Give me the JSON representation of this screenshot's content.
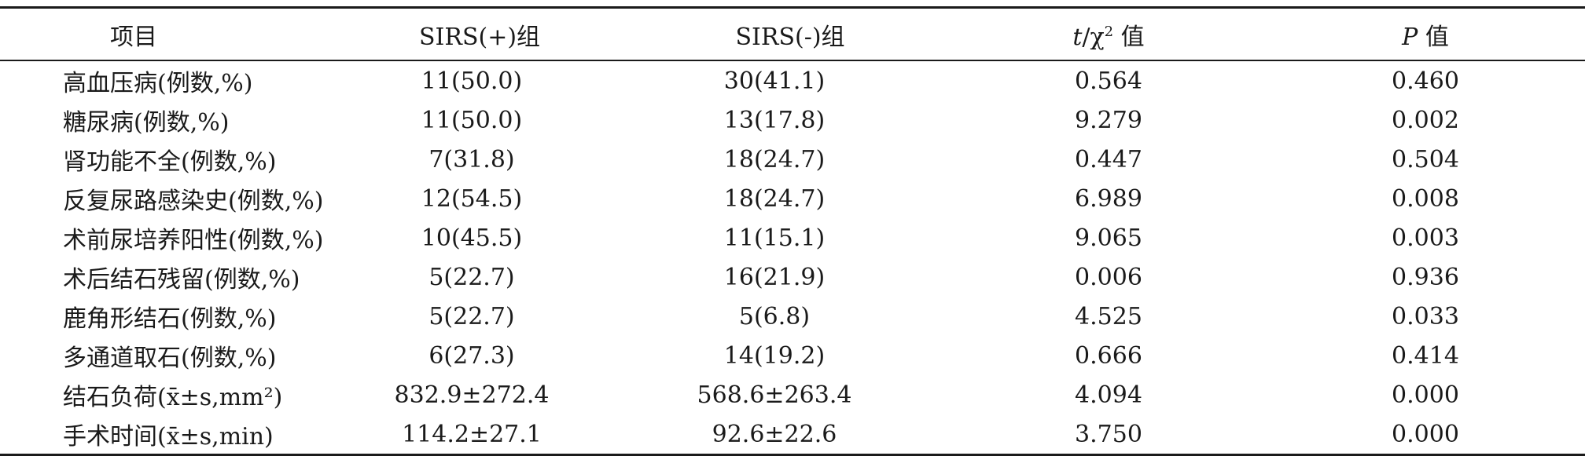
{
  "table": {
    "headers": {
      "item": "项目",
      "sirs_pos": "SIRS(+)组",
      "sirs_neg": "SIRS(-)组",
      "stat_t": "t",
      "stat_sep": "/χ",
      "stat_sup": "2",
      "stat_suffix": " 值",
      "p_letter": "P",
      "p_suffix": " 值"
    },
    "rows": [
      {
        "item": "高血压病(例数,%)",
        "pos": "11(50.0)",
        "neg": "30(41.1)",
        "stat": "0.564",
        "p": "0.460"
      },
      {
        "item": "糖尿病(例数,%)",
        "pos": "11(50.0)",
        "neg": "13(17.8)",
        "stat": "9.279",
        "p": "0.002"
      },
      {
        "item": "肾功能不全(例数,%)",
        "pos": "7(31.8)",
        "neg": "18(24.7)",
        "stat": "0.447",
        "p": "0.504"
      },
      {
        "item": "反复尿路感染史(例数,%)",
        "pos": "12(54.5)",
        "neg": "18(24.7)",
        "stat": "6.989",
        "p": "0.008"
      },
      {
        "item": "术前尿培养阳性(例数,%)",
        "pos": "10(45.5)",
        "neg": "11(15.1)",
        "stat": "9.065",
        "p": "0.003"
      },
      {
        "item": "术后结石残留(例数,%)",
        "pos": "5(22.7)",
        "neg": "16(21.9)",
        "stat": "0.006",
        "p": "0.936"
      },
      {
        "item": "鹿角形结石(例数,%)",
        "pos": "5(22.7)",
        "neg": "5(6.8)",
        "stat": "4.525",
        "p": "0.033"
      },
      {
        "item": "多通道取石(例数,%)",
        "pos": "6(27.3)",
        "neg": "14(19.2)",
        "stat": "0.666",
        "p": "0.414"
      },
      {
        "item": "结石负荷(x̄±s,mm²)",
        "pos": "832.9±272.4",
        "neg": "568.6±263.4",
        "stat": "4.094",
        "p": "0.000"
      },
      {
        "item": "手术时间(x̄±s,min)",
        "pos": "114.2±27.1",
        "neg": "92.6±22.6",
        "stat": "3.750",
        "p": "0.000"
      }
    ]
  }
}
